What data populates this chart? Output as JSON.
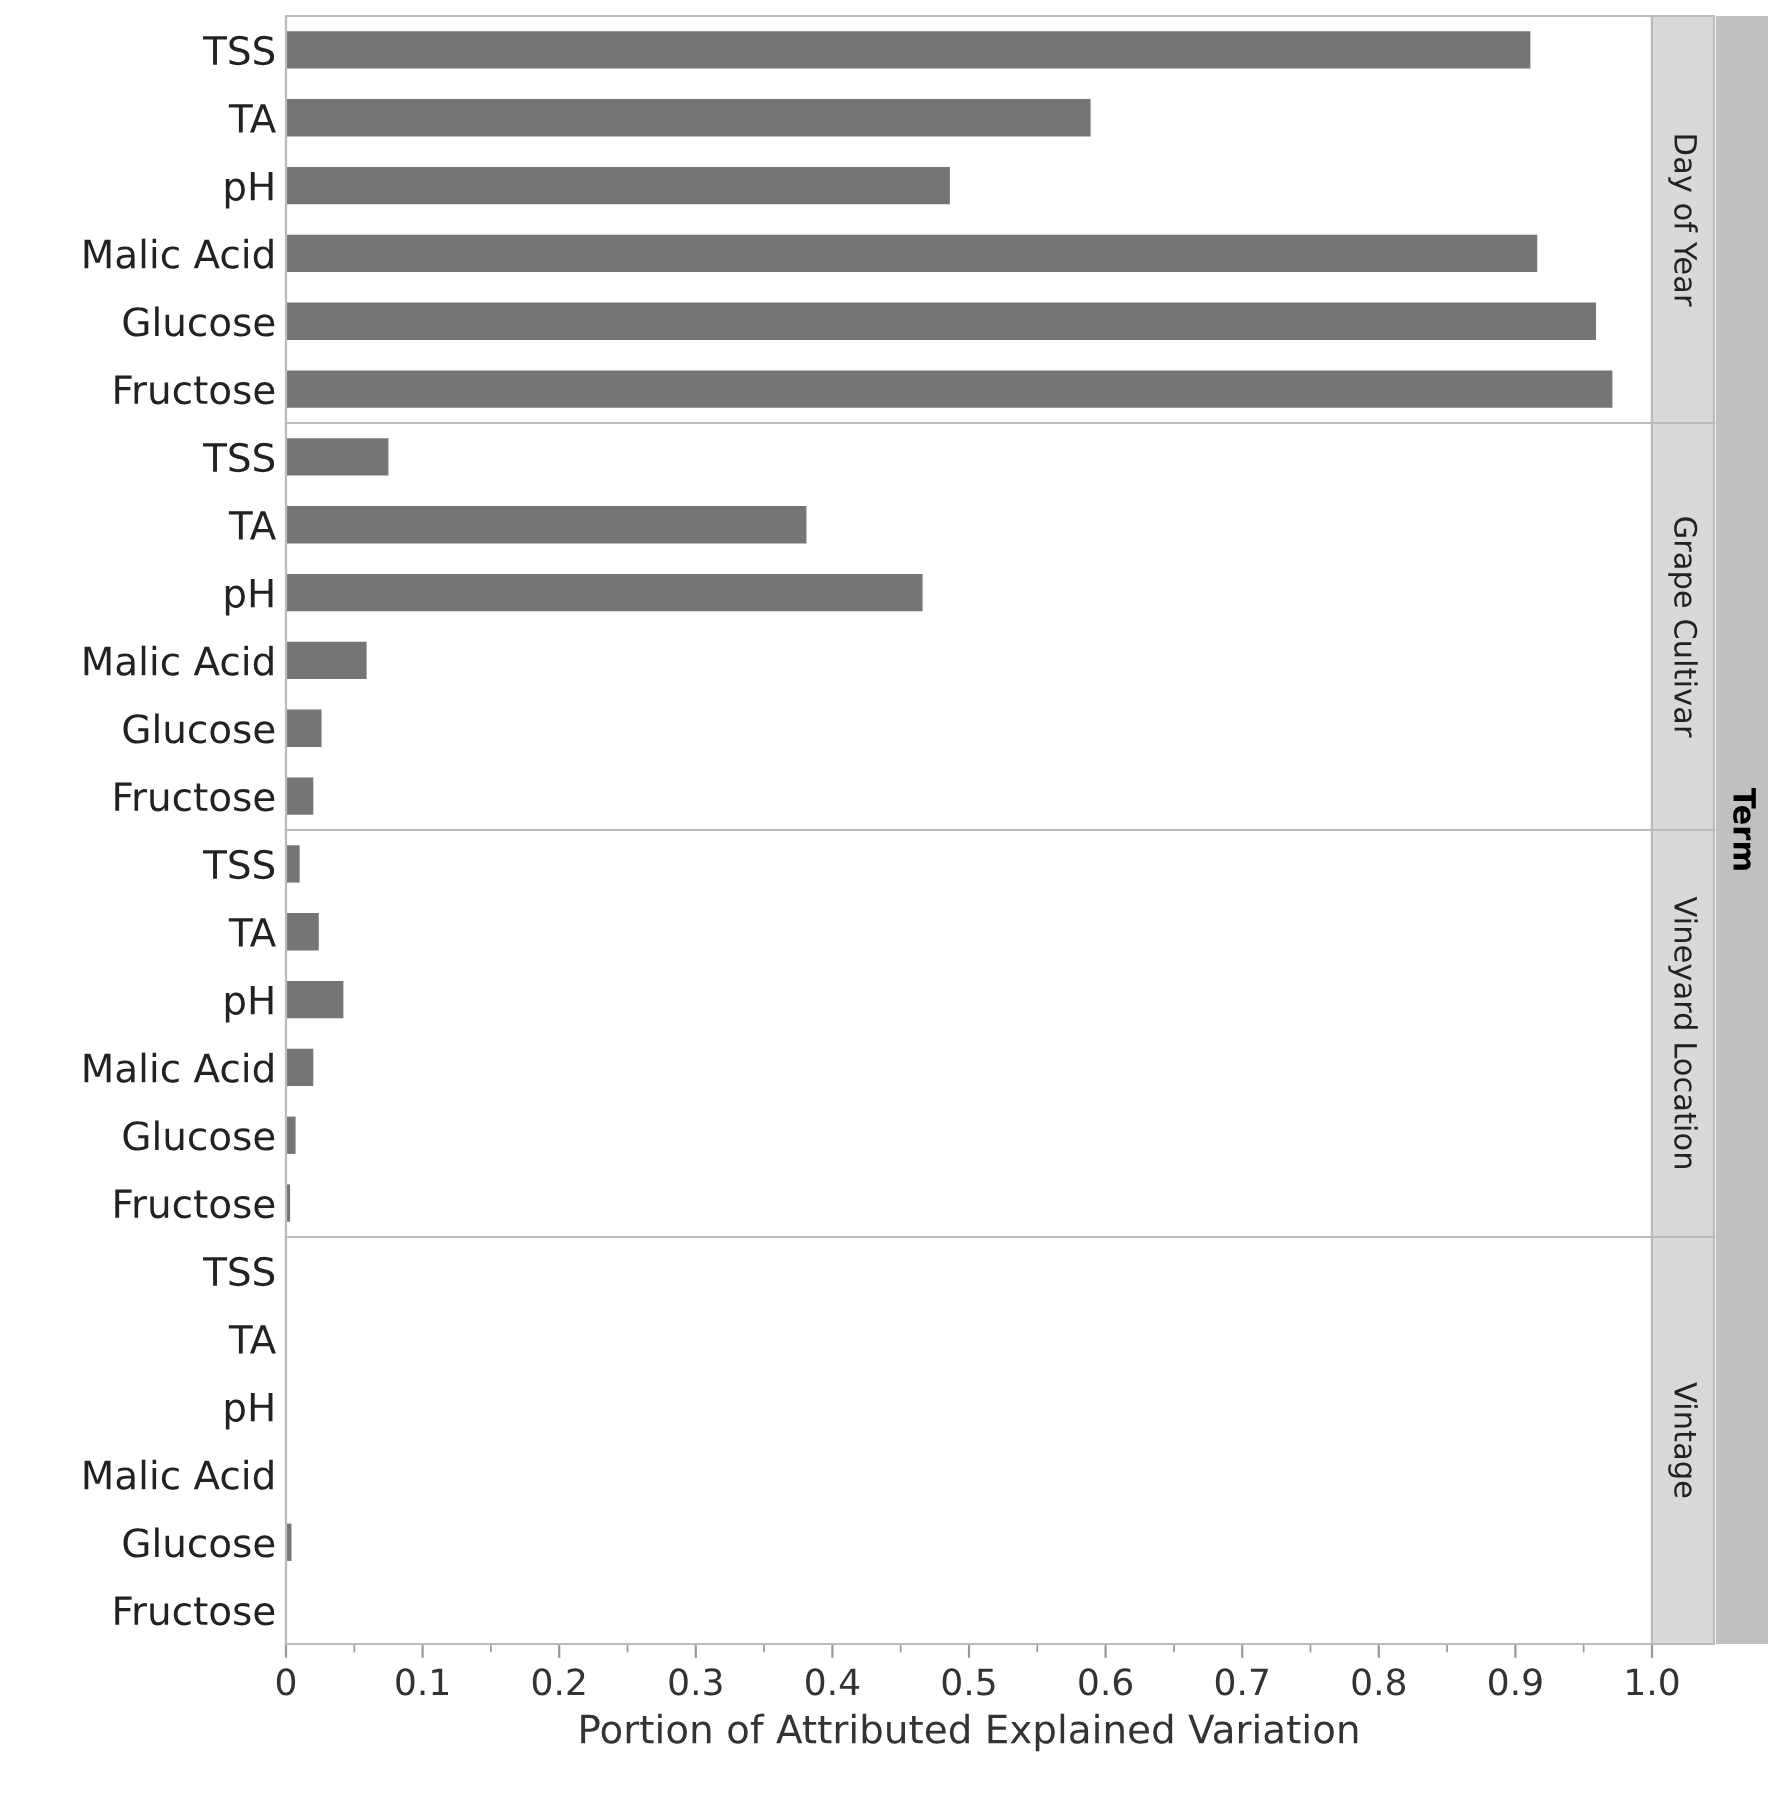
{
  "chart_data": [
    {
      "type": "bar",
      "orientation": "horizontal",
      "y2label": "Day of Year",
      "categories": [
        "TSS",
        "TA",
        "pH",
        "Malic Acid",
        "Glucose",
        "Fructose"
      ],
      "values": [
        0.911,
        0.589,
        0.486,
        0.916,
        0.959,
        0.971
      ],
      "color": "#757575",
      "xlim": [
        0,
        1.0
      ],
      "tick_labels": "y",
      "annotations": [
        "Term"
      ]
    },
    {
      "type": "bar",
      "orientation": "horizontal",
      "y2label": "Grape Cultivar",
      "categories": [
        "TSS",
        "TA",
        "pH",
        "Malic Acid",
        "Glucose",
        "Fructose"
      ],
      "values": [
        0.075,
        0.381,
        0.466,
        0.059,
        0.026,
        0.02
      ],
      "color": "#757575",
      "xlim": [
        0,
        1.0
      ],
      "tick_labels": "y"
    },
    {
      "type": "bar",
      "orientation": "horizontal",
      "y2label": "Vineyard Location",
      "categories": [
        "TSS",
        "TA",
        "pH",
        "Malic Acid",
        "Glucose",
        "Fructose"
      ],
      "values": [
        0.01,
        0.024,
        0.042,
        0.02,
        0.007,
        0.003
      ],
      "color": "#757575",
      "xlim": [
        0,
        1.0
      ],
      "tick_labels": "y"
    },
    {
      "type": "bar",
      "orientation": "horizontal",
      "y2label": "Vintage",
      "categories": [
        "TSS",
        "TA",
        "pH",
        "Malic Acid",
        "Glucose",
        "Fructose"
      ],
      "values": [
        0,
        0,
        0,
        0,
        0.004,
        0
      ],
      "color": "#757575",
      "xlim": [
        0,
        1.0
      ],
      "xticks": [
        0,
        0.1,
        0.2,
        0.3,
        0.4,
        0.5,
        0.6,
        0.7,
        0.8,
        0.9,
        {
          "value": 1.0,
          "label": "1.0"
        }
      ],
      "xlabel": "Portion of Attributed Explained Variation"
    }
  ]
}
